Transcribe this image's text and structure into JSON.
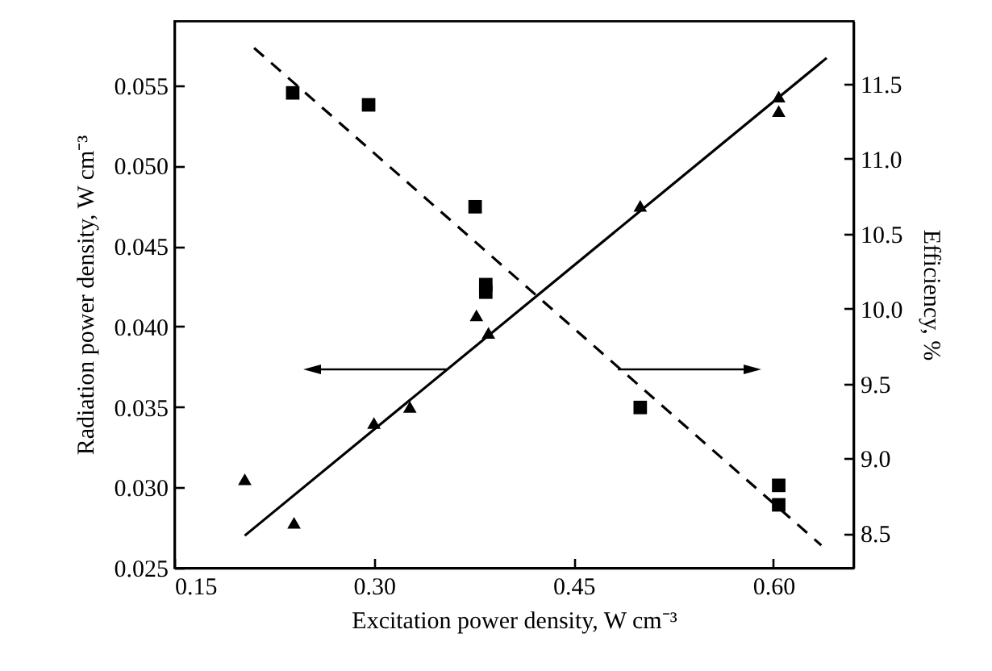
{
  "chart_data": {
    "type": "scatter",
    "xlabel": "Excitation power density, W cm⁻³",
    "ylabel": "Radiation power density, W cm⁻³",
    "y2label": "Efficiency, %",
    "xlim": [
      0.15,
      0.66
    ],
    "xticks": [
      0.15,
      {
        "value": 0.3,
        "label": "0.30"
      },
      0.45,
      {
        "value": 0.6,
        "label": "0.60"
      }
    ],
    "ylim": [
      0.025,
      0.059
    ],
    "yticks": [
      0.025,
      {
        "value": 0.03,
        "label": "0.030"
      },
      0.035,
      {
        "value": 0.04,
        "label": "0.040"
      },
      0.045,
      {
        "value": 0.05,
        "label": "0.050"
      },
      0.055
    ],
    "y2lim": [
      8.27,
      11.92
    ],
    "y2ticks": [
      8.5,
      {
        "value": 9,
        "label": "9.0"
      },
      9.5,
      {
        "value": 10,
        "label": "10.0"
      },
      10.5,
      {
        "value": 11,
        "label": "11.0"
      },
      11.5
    ],
    "grid": false,
    "series": [
      {
        "type": "scatter",
        "axis": "y",
        "marker": "triangle",
        "color": "#000000",
        "x": [
          0.203,
          0.24,
          0.3,
          0.327,
          0.377,
          0.386,
          0.5,
          0.604,
          0.604
        ],
        "values": [
          0.0305,
          0.0278,
          0.034,
          0.035,
          0.0407,
          0.0396,
          0.0475,
          0.0543,
          0.0534
        ]
      },
      {
        "type": "line",
        "axis": "y",
        "line_style": "solid",
        "color": "#000000",
        "x": [
          0.203,
          0.64
        ],
        "values": [
          0.027,
          0.0567
        ]
      },
      {
        "type": "scatter",
        "axis": "y2",
        "marker": "square",
        "color": "#000000",
        "x": [
          0.239,
          0.296,
          0.376,
          0.384,
          0.384,
          0.5,
          0.604,
          0.604
        ],
        "values": [
          11.44,
          11.36,
          10.68,
          10.16,
          10.11,
          9.34,
          8.82,
          8.69
        ]
      },
      {
        "type": "line",
        "axis": "y2",
        "line_style": "dashed",
        "color": "#000000",
        "x": [
          0.21,
          0.636
        ],
        "values": [
          11.74,
          8.42
        ]
      }
    ]
  }
}
